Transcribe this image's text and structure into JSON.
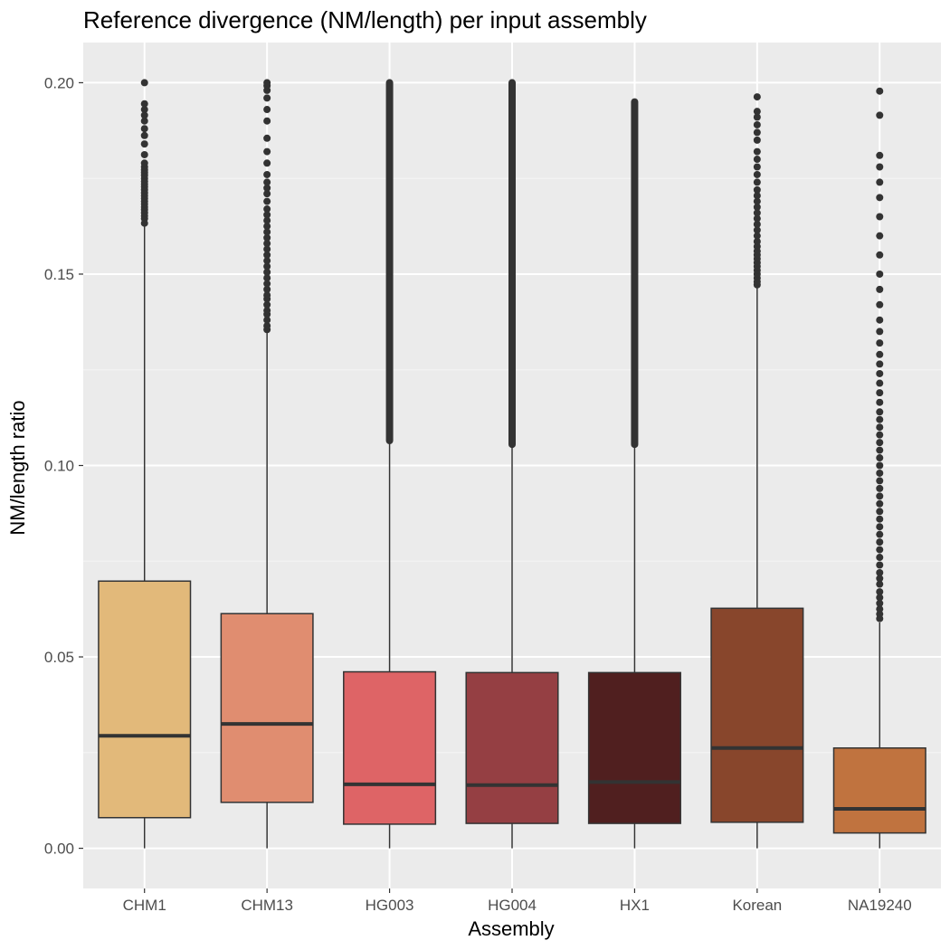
{
  "chart_data": {
    "type": "boxplot",
    "title": "Reference divergence (NM/length) per input assembly",
    "xlabel": "Assembly",
    "ylabel": "NM/length ratio",
    "ylim": [
      -0.0105,
      0.2105
    ],
    "yticks": [
      0.0,
      0.05,
      0.1,
      0.15,
      0.2
    ],
    "ytick_labels": [
      "0.00",
      "0.05",
      "0.10",
      "0.15",
      "0.20"
    ],
    "grid": true,
    "legend": "none",
    "categories": [
      "CHM1",
      "CHM13",
      "HG003",
      "HG004",
      "HX1",
      "Korean",
      "NA19240"
    ],
    "boxes": [
      {
        "name": "CHM1",
        "color": "#E2B97A",
        "whisker_low": 0.0,
        "q1": 0.008,
        "median": 0.0294,
        "q3": 0.0698,
        "whisker_high": 0.163,
        "outliers": [
          0.1633,
          0.1645,
          0.1652,
          0.166,
          0.1668,
          0.1675,
          0.1683,
          0.169,
          0.1698,
          0.1705,
          0.1712,
          0.172,
          0.1728,
          0.1735,
          0.1742,
          0.175,
          0.1758,
          0.1765,
          0.1772,
          0.178,
          0.179,
          0.1812,
          0.184,
          0.1862,
          0.188,
          0.19,
          0.1915,
          0.193,
          0.1945,
          0.2
        ]
      },
      {
        "name": "CHM13",
        "color": "#E08D70",
        "whisker_low": 0.0,
        "q1": 0.012,
        "median": 0.0325,
        "q3": 0.0613,
        "whisker_high": 0.135,
        "outliers": [
          0.1355,
          0.1365,
          0.138,
          0.1395,
          0.1405,
          0.142,
          0.1435,
          0.1445,
          0.146,
          0.1475,
          0.149,
          0.1505,
          0.152,
          0.1535,
          0.155,
          0.1565,
          0.158,
          0.1595,
          0.161,
          0.1625,
          0.164,
          0.1655,
          0.167,
          0.169,
          0.171,
          0.1725,
          0.174,
          0.176,
          0.179,
          0.182,
          0.1855,
          0.19,
          0.193,
          0.196,
          0.198,
          0.1992,
          0.2
        ]
      },
      {
        "name": "HG003",
        "color": "#DE6466",
        "whisker_low": 0.0,
        "q1": 0.0063,
        "median": 0.0167,
        "q3": 0.0461,
        "whisker_high": 0.106,
        "dense_outliers": [
          0.1065,
          0.2
        ]
      },
      {
        "name": "HG004",
        "color": "#953F43",
        "whisker_low": 0.0,
        "q1": 0.0065,
        "median": 0.0165,
        "q3": 0.0459,
        "whisker_high": 0.105,
        "dense_outliers": [
          0.1055,
          0.2
        ]
      },
      {
        "name": "HX1",
        "color": "#501F1F",
        "whisker_low": 0.0,
        "q1": 0.0065,
        "median": 0.0173,
        "q3": 0.0459,
        "whisker_high": 0.105,
        "dense_outliers": [
          0.1055,
          0.195
        ]
      },
      {
        "name": "Korean",
        "color": "#88462C",
        "whisker_low": 0.0,
        "q1": 0.0068,
        "median": 0.0262,
        "q3": 0.0627,
        "whisker_high": 0.147,
        "outliers": [
          0.1472,
          0.148,
          0.149,
          0.15,
          0.151,
          0.152,
          0.153,
          0.154,
          0.155,
          0.156,
          0.1572,
          0.1585,
          0.16,
          0.1615,
          0.163,
          0.1645,
          0.166,
          0.1675,
          0.169,
          0.1705,
          0.172,
          0.174,
          0.176,
          0.178,
          0.18,
          0.182,
          0.185,
          0.187,
          0.189,
          0.191,
          0.1925,
          0.1963
        ]
      },
      {
        "name": "NA19240",
        "color": "#C0733F",
        "whisker_low": 0.0,
        "q1": 0.004,
        "median": 0.0103,
        "q3": 0.0262,
        "whisker_high": 0.059,
        "outliers": [
          0.06,
          0.0612,
          0.0625,
          0.064,
          0.0655,
          0.067,
          0.069,
          0.0705,
          0.072,
          0.074,
          0.076,
          0.078,
          0.08,
          0.082,
          0.084,
          0.086,
          0.088,
          0.09,
          0.092,
          0.094,
          0.096,
          0.098,
          0.1,
          0.102,
          0.104,
          0.106,
          0.108,
          0.11,
          0.112,
          0.114,
          0.1165,
          0.119,
          0.1215,
          0.124,
          0.1265,
          0.129,
          0.132,
          0.135,
          0.138,
          0.142,
          0.146,
          0.15,
          0.155,
          0.16,
          0.165,
          0.17,
          0.174,
          0.178,
          0.181,
          0.1915,
          0.1978
        ]
      }
    ]
  }
}
